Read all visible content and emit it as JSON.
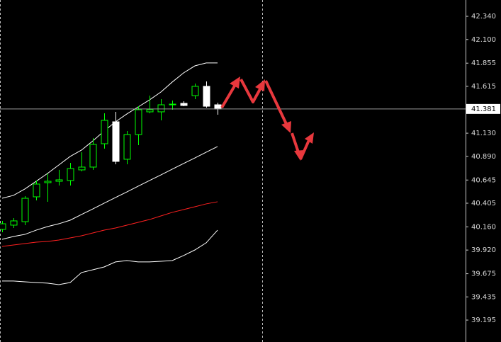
{
  "chart_data": {
    "type": "candlestick",
    "open": [
      40.134,
      40.178,
      40.214,
      40.471,
      40.618,
      40.632,
      40.64,
      40.75,
      40.779,
      41.021,
      41.248,
      40.86,
      41.116,
      41.351,
      41.351,
      41.424,
      41.439,
      41.519,
      41.615,
      41.424
    ],
    "high": [
      40.222,
      40.251,
      40.478,
      40.64,
      40.713,
      40.75,
      40.823,
      40.933,
      41.08,
      41.336,
      41.351,
      41.153,
      41.409,
      41.519,
      41.483,
      41.468,
      41.461,
      41.644,
      41.666,
      41.446
    ],
    "low": [
      40.104,
      40.148,
      40.178,
      40.434,
      40.42,
      40.588,
      40.588,
      40.735,
      40.75,
      40.97,
      40.808,
      40.808,
      41.006,
      41.336,
      41.263,
      41.373,
      41.409,
      41.483,
      41.395,
      41.321
    ],
    "close": [
      40.192,
      40.222,
      40.456,
      40.603,
      40.632,
      40.647,
      40.764,
      40.779,
      41.014,
      41.263,
      40.838,
      41.116,
      41.373,
      41.373,
      41.424,
      41.431,
      41.417,
      41.615,
      41.409,
      41.381
    ],
    "up_color": "#00ff00",
    "down_color": "#ffffff",
    "lines": [
      {
        "color": "#ffffff",
        "values": [
          40.456,
          40.486,
          40.552,
          40.632,
          40.713,
          40.801,
          40.889,
          40.955,
          41.05,
          41.153,
          41.248,
          41.329,
          41.402,
          41.475,
          41.556,
          41.659,
          41.754,
          41.827,
          41.857,
          41.857
        ]
      },
      {
        "color": "#ffffff",
        "values": [
          40.031,
          40.06,
          40.082,
          40.126,
          40.163,
          40.192,
          40.229,
          40.288,
          40.346,
          40.405,
          40.464,
          40.522,
          40.581,
          40.64,
          40.698,
          40.757,
          40.816,
          40.874,
          40.933,
          40.992
        ]
      },
      {
        "color": "#ff2020",
        "values": [
          39.958,
          39.972,
          39.987,
          40.002,
          40.009,
          40.024,
          40.046,
          40.068,
          40.097,
          40.126,
          40.148,
          40.178,
          40.207,
          40.236,
          40.273,
          40.31,
          40.339,
          40.368,
          40.398,
          40.42
        ]
      },
      {
        "color": "#ffffff",
        "values": [
          39.599,
          39.599,
          39.591,
          39.584,
          39.577,
          39.562,
          39.584,
          39.687,
          39.716,
          39.745,
          39.797,
          39.811,
          39.797,
          39.797,
          39.804,
          39.811,
          39.863,
          39.921,
          39.995,
          40.126
        ]
      }
    ],
    "current_price": 41.381,
    "ylim": [
      38.968,
      42.509
    ],
    "yticks": [
      {
        "value": 42.34,
        "label": "42.340"
      },
      {
        "value": 42.1,
        "label": "42.100"
      },
      {
        "value": 41.855,
        "label": "41.855"
      },
      {
        "value": 41.615,
        "label": "41.615"
      },
      {
        "value": 41.13,
        "label": "41.130"
      },
      {
        "value": 40.89,
        "label": "40.890"
      },
      {
        "value": 40.645,
        "label": "40.645"
      },
      {
        "value": 40.405,
        "label": "40.405"
      },
      {
        "value": 40.16,
        "label": "40.160"
      },
      {
        "value": 39.92,
        "label": "39.920"
      },
      {
        "value": 39.675,
        "label": "39.675"
      },
      {
        "value": 39.435,
        "label": "39.435"
      },
      {
        "value": 39.195,
        "label": "39.195"
      }
    ]
  }
}
